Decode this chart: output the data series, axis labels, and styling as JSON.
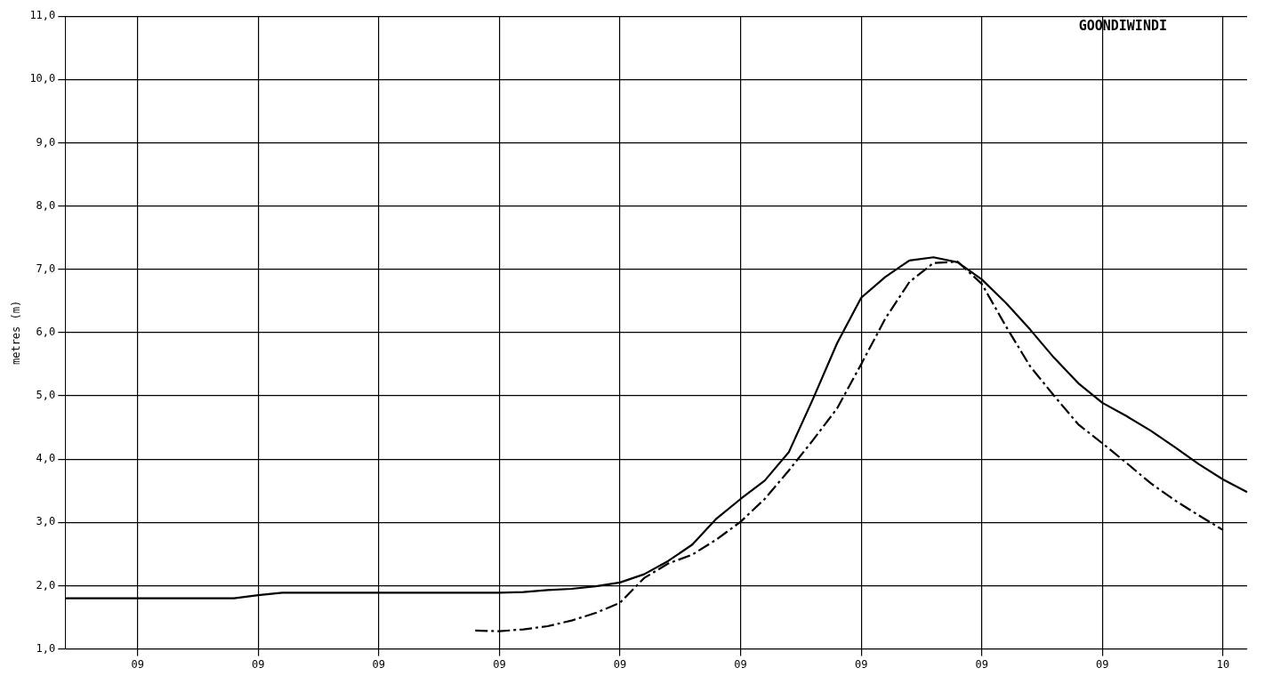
{
  "chart_data": {
    "type": "line",
    "ylabel": "metres (m)",
    "annotations": [
      "GOONDIWINDI"
    ],
    "categories": [
      null,
      null,
      null,
      "09",
      null,
      null,
      null,
      null,
      "09",
      null,
      null,
      null,
      null,
      "09",
      null,
      null,
      null,
      null,
      "09",
      null,
      null,
      null,
      null,
      "09",
      null,
      null,
      null,
      null,
      "09",
      null,
      null,
      null,
      null,
      "09",
      null,
      null,
      null,
      null,
      "09",
      null,
      null,
      null,
      null,
      "09",
      null,
      null,
      null,
      null,
      "10",
      null
    ],
    "ylim": [
      1,
      11
    ],
    "yticks": [
      {
        "value": 1,
        "label": "1,0"
      },
      {
        "value": 2,
        "label": "2,0"
      },
      {
        "value": 3,
        "label": "3,0"
      },
      {
        "value": 4,
        "label": "4,0"
      },
      {
        "value": 5,
        "label": "5,0"
      },
      {
        "value": 6,
        "label": "6,0"
      },
      {
        "value": 7,
        "label": "7,0"
      },
      {
        "value": 8,
        "label": "8,0"
      },
      {
        "value": 9,
        "label": "9,0"
      },
      {
        "value": 10,
        "label": "10,0"
      },
      {
        "value": 11,
        "label": "11,0"
      }
    ],
    "grid": true,
    "legend": false,
    "marker": "none",
    "series": [
      {
        "color": "#000000",
        "line_style": "solid",
        "values": [
          1.8,
          1.8,
          1.8,
          1.8,
          1.8,
          1.8,
          1.8,
          1.8,
          1.85,
          1.89,
          1.89,
          1.89,
          1.89,
          1.89,
          1.89,
          1.89,
          1.89,
          1.89,
          1.89,
          1.9,
          1.93,
          1.95,
          1.99,
          2.05,
          2.18,
          2.39,
          2.65,
          3.06,
          3.37,
          3.66,
          4.11,
          4.95,
          5.83,
          6.55,
          6.88,
          7.14,
          7.19,
          7.11,
          6.84,
          6.47,
          6.05,
          5.6,
          5.2,
          4.89,
          4.68,
          4.45,
          4.19,
          3.92,
          3.68,
          3.48
        ]
      },
      {
        "color": "#000000",
        "line_style": "dashed",
        "values": [
          null,
          null,
          null,
          null,
          null,
          null,
          null,
          null,
          null,
          null,
          null,
          null,
          null,
          null,
          null,
          null,
          null,
          1.29,
          1.28,
          1.31,
          1.36,
          1.45,
          1.57,
          1.73,
          2.12,
          2.35,
          2.49,
          2.73,
          3.01,
          3.37,
          3.82,
          4.3,
          4.8,
          5.5,
          6.22,
          6.8,
          7.1,
          7.12,
          6.77,
          6.1,
          5.47,
          5.0,
          4.55,
          4.25,
          3.94,
          3.62,
          3.35,
          3.11,
          2.88,
          null
        ]
      }
    ]
  }
}
